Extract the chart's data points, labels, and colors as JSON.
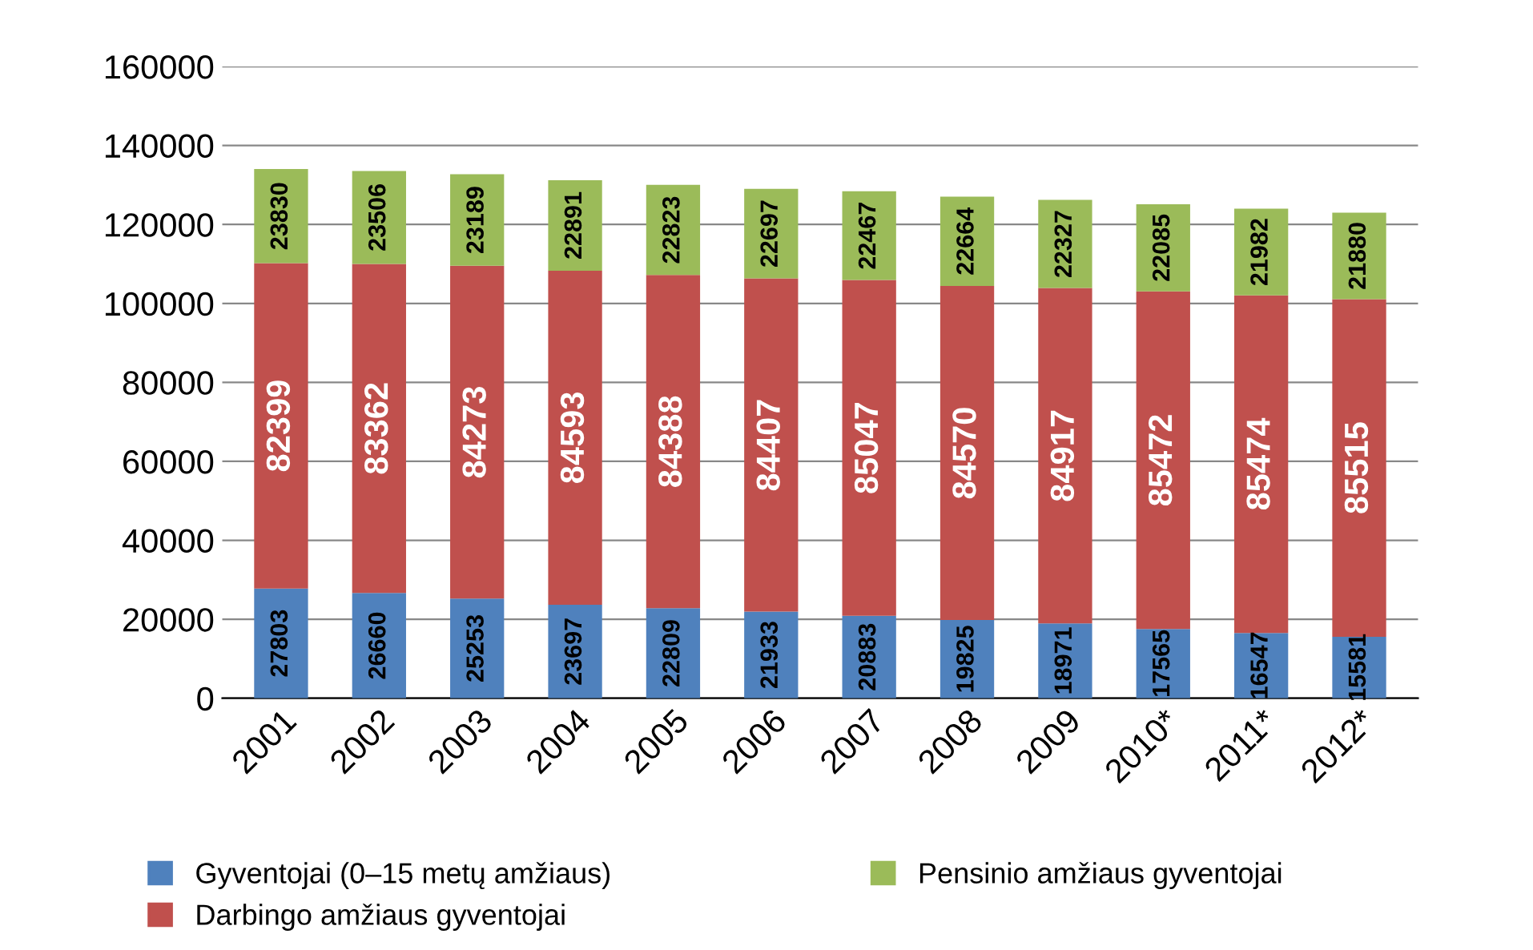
{
  "chart_data": {
    "type": "bar",
    "stacked": true,
    "categories": [
      "2001",
      "2002",
      "2003",
      "2004",
      "2005",
      "2006",
      "2007",
      "2008",
      "2009",
      "2010*",
      "2011*",
      "2012*"
    ],
    "series": [
      {
        "name": "Gyventojai (0–15 metų amžiaus)",
        "color": "#4f81bd",
        "values": [
          27803,
          26660,
          25253,
          23697,
          22809,
          21933,
          20883,
          19825,
          18971,
          17565,
          16547,
          15581
        ]
      },
      {
        "name": "Darbingo amžiaus gyventojai",
        "color": "#c0504d",
        "values": [
          82399,
          83362,
          84273,
          84593,
          84388,
          84407,
          85047,
          84570,
          84917,
          85472,
          85474,
          85515
        ]
      },
      {
        "name": "Pensinio amžiaus gyventojai",
        "color": "#9bbb59",
        "values": [
          23830,
          23506,
          23189,
          22891,
          22823,
          22697,
          22467,
          22664,
          22327,
          22085,
          21982,
          21880
        ]
      }
    ],
    "ylim": [
      0,
      160000
    ],
    "yticks": [
      0,
      20000,
      40000,
      60000,
      80000,
      100000,
      120000,
      140000,
      160000
    ],
    "grid": "y",
    "legend": "bottom",
    "data_labels": true
  }
}
